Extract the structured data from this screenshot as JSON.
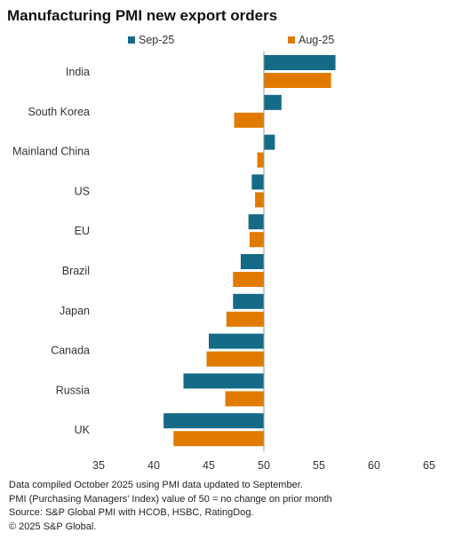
{
  "chart_data": {
    "type": "bar",
    "orientation": "horizontal",
    "title": "Manufacturing PMI new export orders",
    "categories": [
      "India",
      "South Korea",
      "Mainland China",
      "US",
      "EU",
      "Brazil",
      "Japan",
      "Canada",
      "Russia",
      "UK"
    ],
    "series": [
      {
        "name": "Sep-25",
        "color": "#156b87",
        "values": [
          56.5,
          51.6,
          51.0,
          48.9,
          48.6,
          47.9,
          47.2,
          45.0,
          42.7,
          40.9
        ]
      },
      {
        "name": "Aug-25",
        "color": "#e07b00",
        "values": [
          56.1,
          47.3,
          49.4,
          49.2,
          48.7,
          47.2,
          46.6,
          44.8,
          46.5,
          41.8
        ]
      }
    ],
    "xlim": [
      35,
      65
    ],
    "xticks": [
      "35",
      "40",
      "45",
      "50",
      "55",
      "60",
      "65"
    ],
    "baseline": 50,
    "legend_position": "top",
    "grid": false
  },
  "footnotes": [
    "Data compiled October 2025 using PMI data updated to September.",
    "PMI (Purchasing Managers' Index) value of 50 = no change on prior month",
    "Source: S&P Global PMI with HCOB, HSBC, RatingDog.",
    "© 2025 S&P Global."
  ]
}
